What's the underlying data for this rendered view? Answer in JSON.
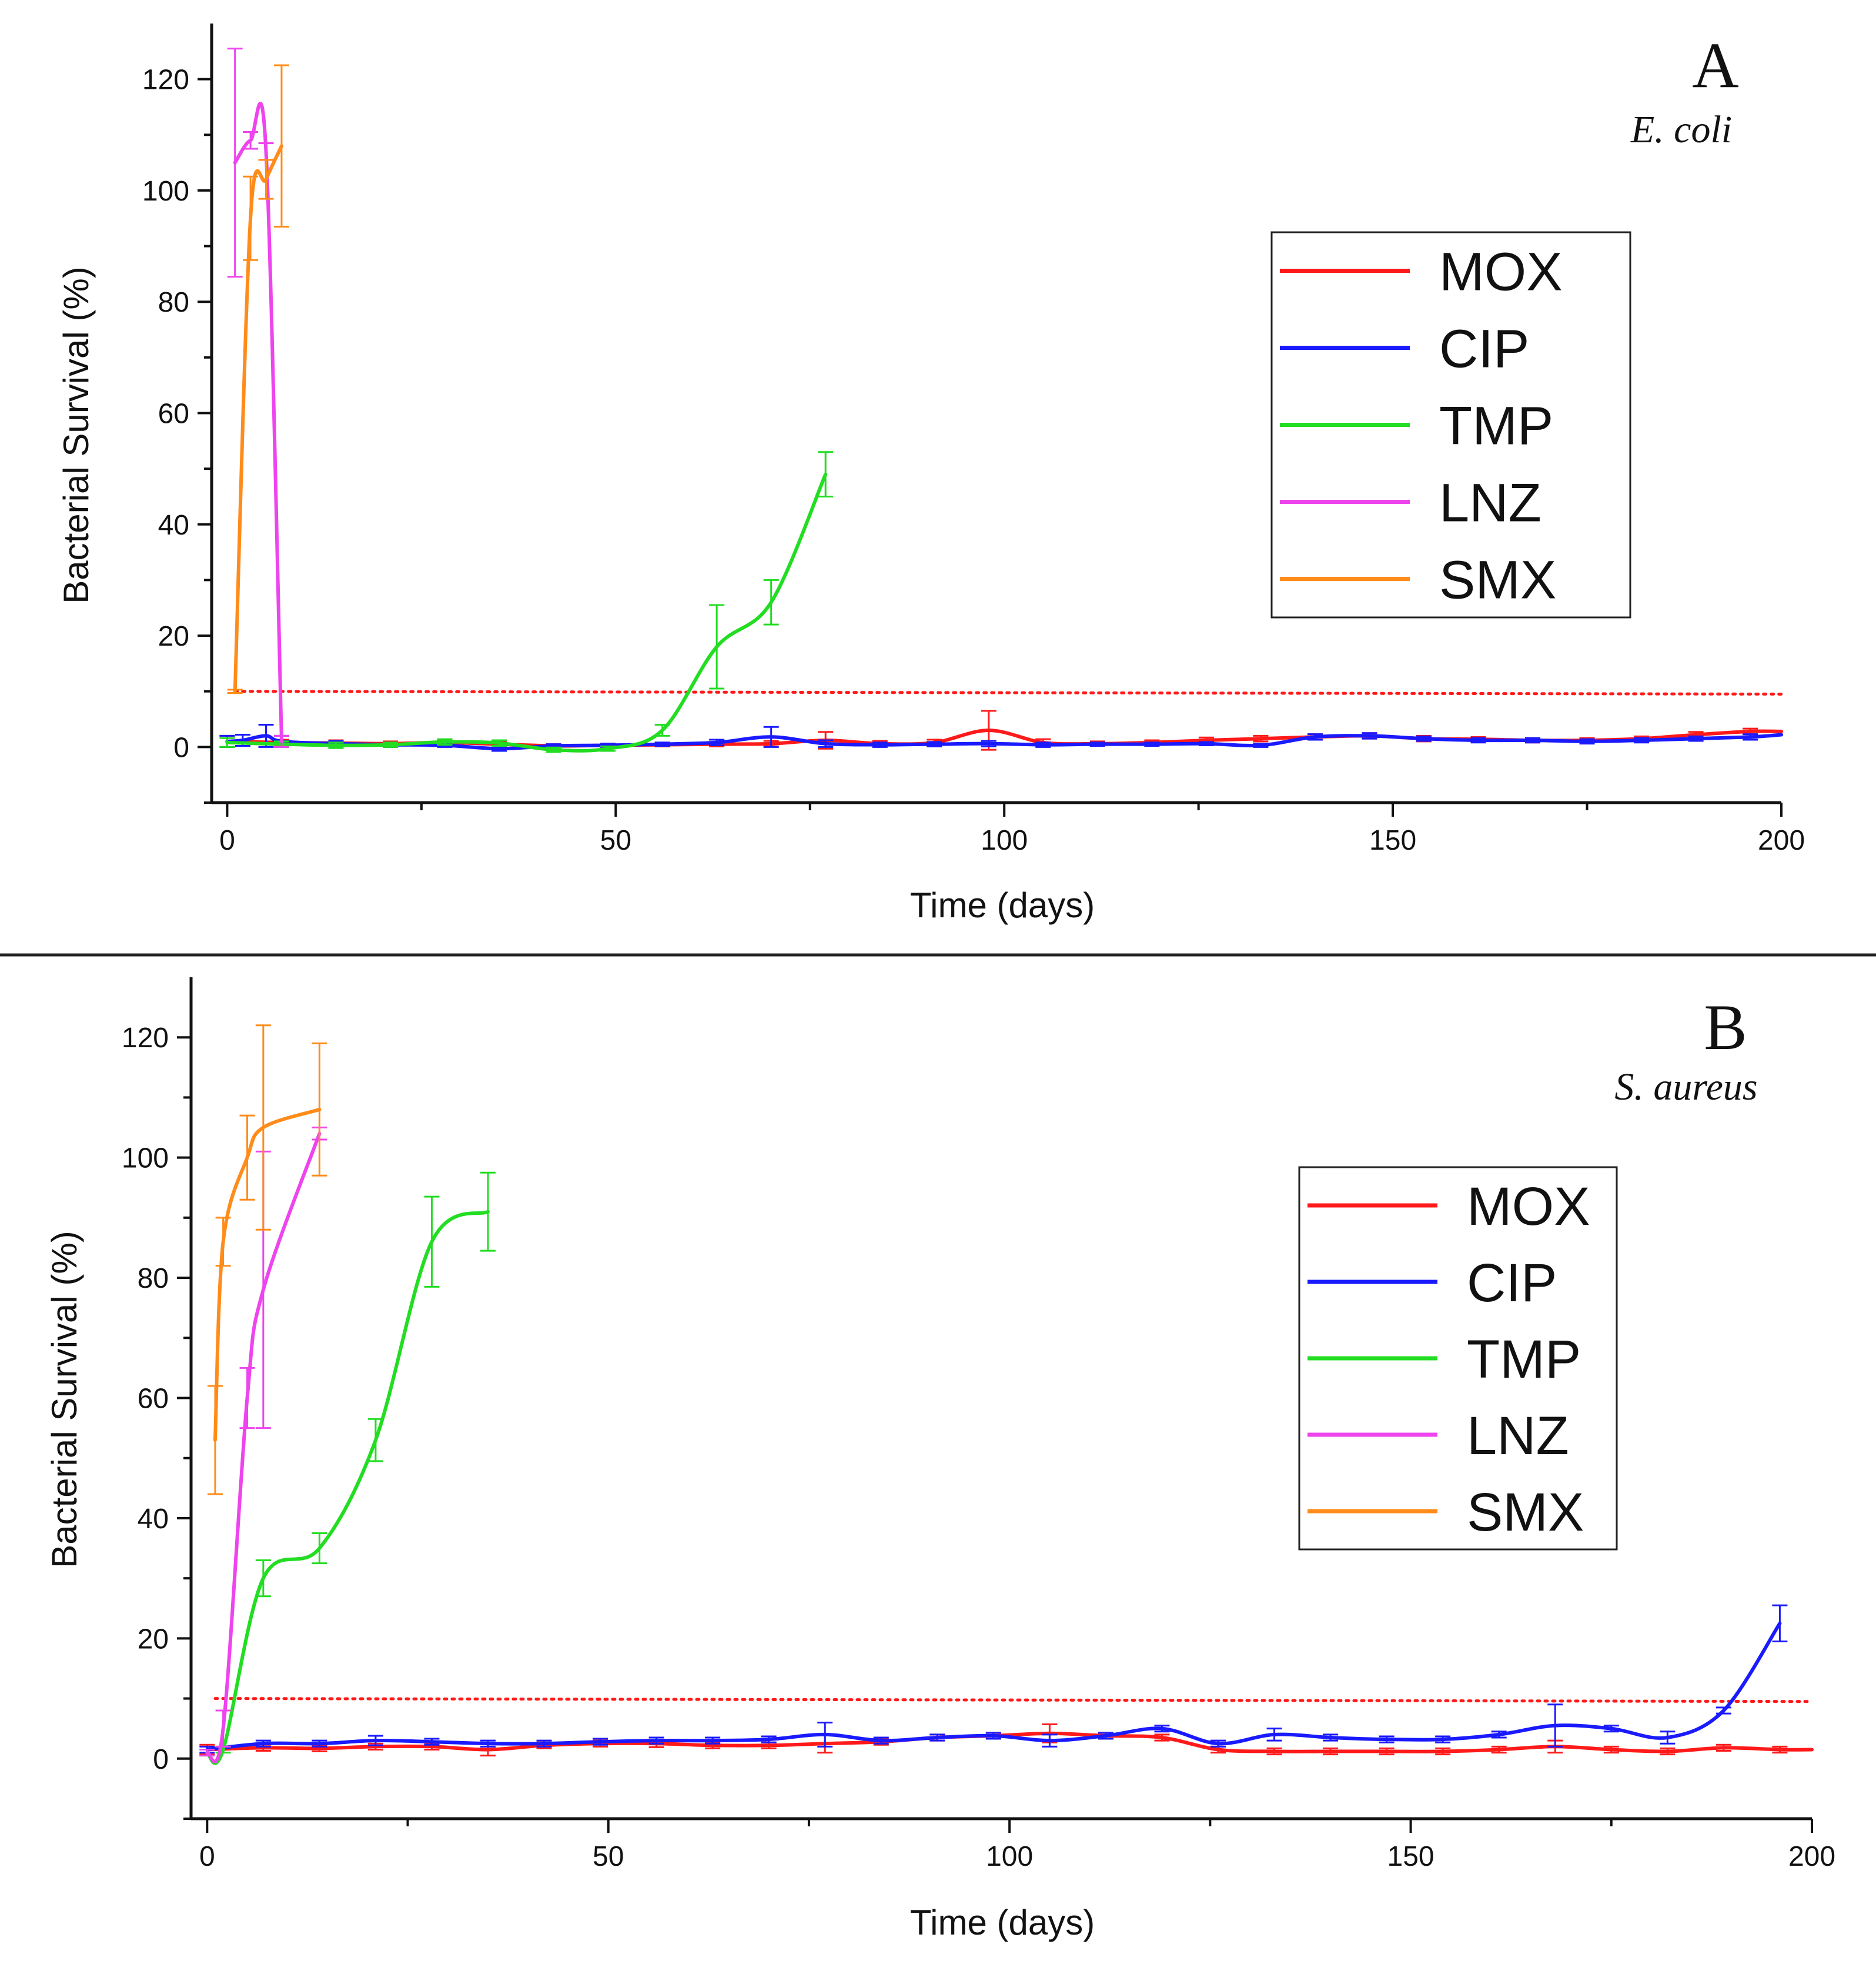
{
  "chart_data": [
    {
      "type": "line",
      "panel": "A",
      "organism": "E. coli",
      "xlabel": "Time (days)",
      "ylabel": "Bacterial Survival (%)",
      "xlim": [
        -2,
        200
      ],
      "ylim": [
        -10,
        130
      ],
      "xticks": [
        0,
        50,
        100,
        150,
        200
      ],
      "yticks": [
        0,
        20,
        40,
        60,
        80,
        100,
        120
      ],
      "threshold": [
        [
          1,
          10
        ],
        [
          200,
          9.5
        ]
      ],
      "series": [
        {
          "name": "MOX",
          "color": "#ff1a1a",
          "x": [
            0,
            7,
            14,
            21,
            28,
            35,
            42,
            49,
            56,
            63,
            70,
            77,
            84,
            91,
            98,
            105,
            112,
            119,
            126,
            133,
            140,
            147,
            154,
            161,
            168,
            175,
            182,
            189,
            196,
            200
          ],
          "y": [
            1,
            0.8,
            0.7,
            0.6,
            0.8,
            0.5,
            0.2,
            0.3,
            0.4,
            0.5,
            0.6,
            1.2,
            0.6,
            0.8,
            3,
            0.8,
            0.6,
            0.8,
            1.2,
            1.5,
            1.8,
            2,
            1.5,
            1.4,
            1.2,
            1.2,
            1.5,
            2.2,
            2.8,
            2.8
          ],
          "err": [
            1,
            0.5,
            0.5,
            0.4,
            0.4,
            0.4,
            0.3,
            0.3,
            0.3,
            0.4,
            0.5,
            1.5,
            0.5,
            0.5,
            3.5,
            0.6,
            0.4,
            0.4,
            0.5,
            0.5,
            0.5,
            0.5,
            0.5,
            0.4,
            0.4,
            0.4,
            0.4,
            0.5,
            0.5,
            0
          ]
        },
        {
          "name": "CIP",
          "color": "#1a1aff",
          "x": [
            0,
            2,
            5,
            7,
            14,
            21,
            28,
            35,
            42,
            49,
            56,
            63,
            70,
            77,
            84,
            91,
            98,
            105,
            112,
            119,
            126,
            133,
            140,
            147,
            154,
            161,
            168,
            175,
            182,
            189,
            196,
            200
          ],
          "y": [
            1,
            1.2,
            2,
            1,
            0.6,
            0.4,
            0.3,
            -0.3,
            0.2,
            0.3,
            0.5,
            0.8,
            1.8,
            0.6,
            0.4,
            0.5,
            0.6,
            0.4,
            0.5,
            0.5,
            0.6,
            0.3,
            1.8,
            2,
            1.5,
            1.2,
            1.2,
            1,
            1.2,
            1.5,
            1.8,
            2.2
          ],
          "err": [
            1,
            1,
            2,
            1,
            0.5,
            0.4,
            0.3,
            0.4,
            0.3,
            0.3,
            0.3,
            0.5,
            1.8,
            0.6,
            0.4,
            0.4,
            0.5,
            0.4,
            0.3,
            0.3,
            0.3,
            0.3,
            0.5,
            0.5,
            0.4,
            0.4,
            0.4,
            0.4,
            0.4,
            0.4,
            0.5,
            0
          ]
        },
        {
          "name": "TMP",
          "color": "#22dd22",
          "x": [
            0,
            7,
            14,
            21,
            28,
            35,
            42,
            49,
            56,
            63,
            70,
            77
          ],
          "y": [
            0.8,
            0.5,
            0.3,
            0.4,
            0.9,
            0.7,
            -0.5,
            -0.3,
            3,
            18,
            26,
            49
          ],
          "err": [
            0.8,
            0.5,
            0.5,
            0.4,
            0.5,
            0.5,
            0.4,
            0.4,
            1,
            7.5,
            4,
            4
          ]
        },
        {
          "name": "LNZ",
          "color": "#ee44ee",
          "x": [
            1,
            3,
            5,
            7
          ],
          "y": [
            105,
            109,
            107,
            1
          ],
          "err": [
            20.5,
            1.5,
            1.5,
            1
          ]
        },
        {
          "name": "SMX",
          "color": "#ff8c1a",
          "x": [
            1,
            3,
            5,
            7
          ],
          "y": [
            10,
            95,
            102,
            108
          ],
          "err": [
            0.3,
            7.5,
            3.5,
            14.5
          ]
        }
      ]
    },
    {
      "type": "line",
      "panel": "B",
      "organism": "S. aureus",
      "xlabel": "Time (days)",
      "ylabel": "Bacterial Survival (%)",
      "xlim": [
        -2,
        200
      ],
      "ylim": [
        -10,
        130
      ],
      "xticks": [
        0,
        50,
        100,
        150,
        200
      ],
      "yticks": [
        0,
        20,
        40,
        60,
        80,
        100,
        120
      ],
      "threshold": [
        [
          1,
          10
        ],
        [
          200,
          9.5
        ]
      ],
      "series": [
        {
          "name": "MOX",
          "color": "#ff1a1a",
          "x": [
            0,
            7,
            14,
            21,
            28,
            35,
            42,
            49,
            56,
            63,
            70,
            77,
            84,
            91,
            98,
            105,
            112,
            119,
            126,
            133,
            140,
            147,
            154,
            161,
            168,
            175,
            182,
            189,
            196,
            200
          ],
          "y": [
            1.5,
            1.8,
            1.7,
            2,
            2,
            1.5,
            2.2,
            2.5,
            2.5,
            2.2,
            2.2,
            2.5,
            2.8,
            3.5,
            3.8,
            4.2,
            3.8,
            3.5,
            1.5,
            1.2,
            1.2,
            1.2,
            1.2,
            1.5,
            2,
            1.5,
            1.2,
            1.8,
            1.5,
            1.5
          ],
          "err": [
            0.8,
            0.5,
            0.5,
            0.5,
            0.5,
            1,
            0.5,
            0.5,
            0.6,
            0.5,
            0.5,
            1.5,
            0.5,
            0.5,
            0.5,
            1.5,
            0.5,
            0.5,
            0.5,
            0.5,
            0.5,
            0.5,
            0.5,
            0.5,
            1,
            0.5,
            0.5,
            0.5,
            0.5,
            0
          ]
        },
        {
          "name": "CIP",
          "color": "#1a1aff",
          "x": [
            0,
            7,
            14,
            21,
            28,
            35,
            42,
            49,
            56,
            63,
            70,
            77,
            84,
            91,
            98,
            105,
            112,
            119,
            126,
            133,
            140,
            147,
            154,
            161,
            168,
            175,
            182,
            189,
            196
          ],
          "y": [
            1.5,
            2.5,
            2.5,
            3,
            2.8,
            2.5,
            2.5,
            2.8,
            3,
            3,
            3.2,
            4,
            3,
            3.5,
            3.8,
            3,
            3.8,
            5,
            2.5,
            4,
            3.5,
            3.2,
            3.2,
            4,
            5.5,
            5,
            3.5,
            8,
            22.5
          ],
          "err": [
            0.5,
            0.5,
            0.5,
            0.8,
            0.5,
            0.5,
            0.5,
            0.5,
            0.5,
            0.5,
            0.5,
            2,
            0.5,
            0.5,
            0.5,
            1,
            0.5,
            0.5,
            0.5,
            1,
            0.5,
            0.5,
            0.5,
            0.5,
            3.5,
            0.5,
            1,
            0.5,
            3
          ]
        },
        {
          "name": "TMP",
          "color": "#22dd22",
          "x": [
            0,
            2,
            7,
            14,
            21,
            28,
            35
          ],
          "y": [
            1,
            1.5,
            30,
            35,
            53,
            86,
            91
          ],
          "err": [
            0.5,
            0.5,
            3,
            2.5,
            3.5,
            7.5,
            6.5
          ]
        },
        {
          "name": "LNZ",
          "color": "#ee44ee",
          "x": [
            0,
            2,
            5,
            7,
            14
          ],
          "y": [
            1,
            5,
            60,
            78,
            104
          ],
          "err": [
            0.5,
            3,
            5,
            23,
            1
          ]
        },
        {
          "name": "SMX",
          "color": "#ff8c1a",
          "x": [
            1,
            2,
            5,
            7,
            14
          ],
          "y": [
            53,
            86,
            100,
            105,
            108
          ],
          "err": [
            9,
            4,
            7,
            17,
            11
          ]
        }
      ]
    }
  ]
}
